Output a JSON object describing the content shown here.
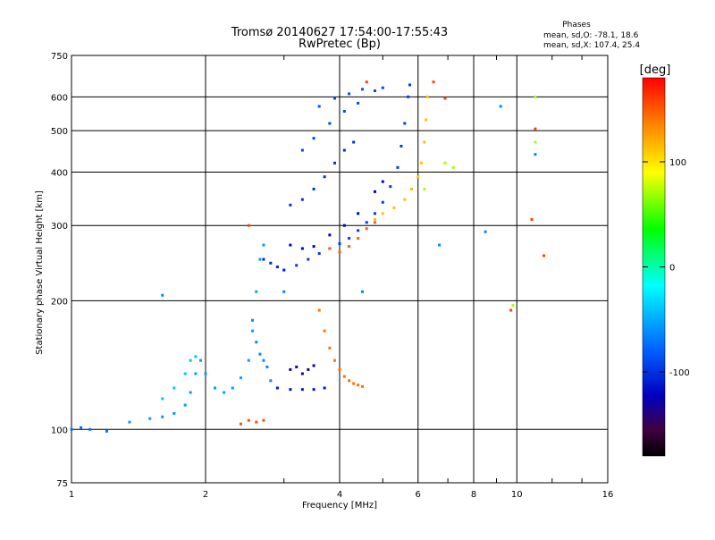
{
  "chart_data": {
    "type": "scatter",
    "title": "Tromsø 20140627 17:54:00-17:55:43",
    "subtitle": "RwPretec (Bp)",
    "xlabel": "Frequency [MHz]",
    "ylabel": "Stationary phase Virtual Height [km]",
    "x_scale": "log",
    "y_scale": "log",
    "xlim": [
      1,
      16
    ],
    "ylim": [
      75,
      750
    ],
    "x_ticks": [
      1,
      2,
      4,
      6,
      8,
      10,
      16
    ],
    "y_ticks": [
      75,
      100,
      200,
      300,
      400,
      500,
      600,
      750
    ],
    "grid": true,
    "phases_box": {
      "title": "Phases",
      "line1": "mean, sd,O: -78.1, 18.6",
      "line2": "mean, sd,X: 107.4, 25.4"
    },
    "colorbar": {
      "label": "[deg]",
      "range": [
        -180,
        180
      ],
      "ticks": [
        100,
        0,
        -100
      ],
      "colormap": "rainbow"
    },
    "series": [
      {
        "phase": -85,
        "points": [
          [
            3.0,
            236
          ],
          [
            3.2,
            242
          ],
          [
            3.4,
            250
          ],
          [
            3.6,
            258
          ],
          [
            3.8,
            265
          ],
          [
            4.0,
            272
          ],
          [
            4.2,
            280
          ],
          [
            4.4,
            292
          ],
          [
            4.6,
            305
          ],
          [
            4.8,
            320
          ],
          [
            5.0,
            340
          ],
          [
            5.2,
            370
          ],
          [
            5.4,
            410
          ],
          [
            5.5,
            460
          ],
          [
            5.6,
            520
          ],
          [
            5.7,
            600
          ],
          [
            5.75,
            640
          ]
        ]
      },
      {
        "phase": -95,
        "points": [
          [
            2.7,
            250
          ],
          [
            2.8,
            245
          ],
          [
            2.9,
            240
          ],
          [
            3.0,
            236
          ]
        ]
      },
      {
        "phase": -110,
        "points": [
          [
            3.1,
            270
          ],
          [
            3.3,
            265
          ],
          [
            3.5,
            268
          ],
          [
            3.8,
            285
          ],
          [
            4.1,
            300
          ],
          [
            4.4,
            320
          ],
          [
            4.8,
            360
          ],
          [
            5.0,
            380
          ]
        ]
      },
      {
        "phase": -90,
        "points": [
          [
            3.1,
            335
          ],
          [
            3.3,
            345
          ],
          [
            3.5,
            365
          ],
          [
            3.7,
            390
          ],
          [
            3.9,
            420
          ],
          [
            4.1,
            450
          ],
          [
            4.3,
            470
          ]
        ]
      },
      {
        "phase": -80,
        "points": [
          [
            3.3,
            450
          ],
          [
            3.5,
            480
          ],
          [
            3.8,
            520
          ],
          [
            4.1,
            555
          ],
          [
            4.4,
            580
          ],
          [
            4.8,
            620
          ],
          [
            5.0,
            630
          ]
        ]
      },
      {
        "phase": -75,
        "points": [
          [
            3.6,
            570
          ],
          [
            3.9,
            595
          ],
          [
            4.2,
            610
          ],
          [
            4.5,
            625
          ]
        ]
      },
      {
        "phase": -100,
        "points": [
          [
            2.9,
            125
          ],
          [
            3.1,
            124
          ],
          [
            3.3,
            124
          ],
          [
            3.5,
            124
          ],
          [
            3.7,
            125
          ]
        ]
      },
      {
        "phase": -125,
        "points": [
          [
            3.1,
            138
          ],
          [
            3.2,
            140
          ],
          [
            3.3,
            135
          ],
          [
            3.4,
            138
          ],
          [
            3.5,
            141
          ]
        ]
      },
      {
        "phase": -65,
        "points": [
          [
            1.0,
            100
          ],
          [
            1.05,
            101
          ],
          [
            1.1,
            100
          ],
          [
            1.2,
            99
          ]
        ]
      },
      {
        "phase": -55,
        "points": [
          [
            1.35,
            104
          ],
          [
            1.5,
            106
          ],
          [
            1.6,
            107
          ],
          [
            1.7,
            109
          ],
          [
            1.8,
            114
          ],
          [
            1.85,
            122
          ],
          [
            1.9,
            135
          ],
          [
            1.95,
            145
          ],
          [
            2.0,
            135
          ],
          [
            2.1,
            125
          ],
          [
            2.2,
            122
          ],
          [
            2.3,
            125
          ],
          [
            2.4,
            132
          ],
          [
            2.5,
            145
          ],
          [
            2.55,
            170
          ],
          [
            2.6,
            210
          ],
          [
            2.65,
            250
          ],
          [
            2.7,
            270
          ]
        ]
      },
      {
        "phase": -45,
        "points": [
          [
            1.6,
            118
          ],
          [
            1.7,
            125
          ],
          [
            1.8,
            135
          ],
          [
            1.85,
            145
          ],
          [
            1.9,
            148
          ]
        ]
      },
      {
        "phase": -60,
        "points": [
          [
            2.55,
            180
          ],
          [
            2.6,
            160
          ],
          [
            2.65,
            150
          ],
          [
            2.7,
            145
          ],
          [
            2.75,
            140
          ],
          [
            2.8,
            130
          ]
        ]
      },
      {
        "phase": 145,
        "points": [
          [
            3.6,
            190
          ],
          [
            3.7,
            170
          ],
          [
            3.8,
            155
          ],
          [
            3.9,
            145
          ],
          [
            4.0,
            138
          ],
          [
            4.1,
            133
          ],
          [
            4.2,
            130
          ],
          [
            4.3,
            128
          ],
          [
            4.4,
            127
          ],
          [
            4.5,
            126
          ]
        ]
      },
      {
        "phase": 150,
        "points": [
          [
            3.8,
            265
          ],
          [
            4.0,
            260
          ],
          [
            4.2,
            268
          ],
          [
            4.4,
            280
          ],
          [
            4.6,
            295
          ],
          [
            4.8,
            305
          ]
        ]
      },
      {
        "phase": 110,
        "points": [
          [
            4.8,
            310
          ],
          [
            5.0,
            320
          ],
          [
            5.3,
            330
          ],
          [
            5.6,
            345
          ],
          [
            5.8,
            365
          ],
          [
            6.0,
            390
          ],
          [
            6.1,
            420
          ],
          [
            6.2,
            470
          ],
          [
            6.25,
            530
          ],
          [
            6.3,
            600
          ]
        ]
      },
      {
        "phase": 155,
        "points": [
          [
            2.4,
            103
          ],
          [
            2.5,
            105
          ],
          [
            2.6,
            104
          ],
          [
            2.7,
            105
          ]
        ]
      },
      {
        "phase": -60,
        "points": [
          [
            1.6,
            206
          ],
          [
            3.0,
            210
          ],
          [
            4.5,
            210
          ],
          [
            6.7,
            270
          ],
          [
            8.5,
            290
          ],
          [
            9.2,
            570
          ],
          [
            11.0,
            440
          ]
        ]
      },
      {
        "phase": 60,
        "points": [
          [
            6.9,
            420
          ],
          [
            7.2,
            410
          ],
          [
            9.8,
            195
          ],
          [
            11.0,
            470
          ],
          [
            11.0,
            600
          ],
          [
            6.2,
            365
          ]
        ]
      },
      {
        "phase": 160,
        "points": [
          [
            2.5,
            300
          ],
          [
            4.6,
            650
          ],
          [
            6.5,
            650
          ],
          [
            6.9,
            595
          ],
          [
            9.7,
            190
          ],
          [
            11.0,
            505
          ],
          [
            10.8,
            310
          ],
          [
            11.5,
            255
          ]
        ]
      }
    ]
  }
}
